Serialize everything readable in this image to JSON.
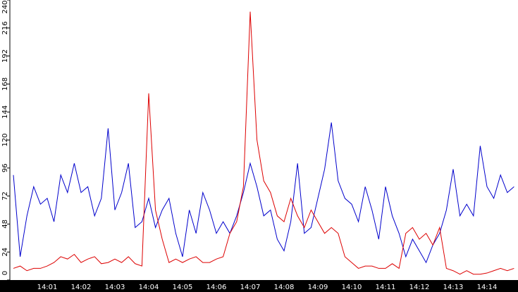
{
  "chart_data": {
    "type": "line",
    "categories": [
      null,
      null,
      null,
      null,
      null,
      "14:01",
      null,
      null,
      null,
      null,
      "14:02",
      null,
      null,
      null,
      null,
      "14:03",
      null,
      null,
      null,
      null,
      "14:04",
      null,
      null,
      null,
      null,
      "14:05",
      null,
      null,
      null,
      null,
      "14:06",
      null,
      null,
      null,
      null,
      "14:07",
      null,
      null,
      null,
      null,
      "14:08",
      null,
      null,
      null,
      null,
      "14:09",
      null,
      null,
      null,
      null,
      "14:10",
      null,
      null,
      null,
      null,
      "14:11",
      null,
      null,
      null,
      null,
      "14:12",
      null,
      null,
      null,
      null,
      "14:13",
      null,
      null,
      null,
      null,
      "14:14",
      null,
      null,
      null,
      null
    ],
    "series": [
      {
        "color": "#0000cc",
        "values": [
          90,
          20,
          55,
          80,
          65,
          70,
          50,
          90,
          75,
          100,
          75,
          80,
          55,
          70,
          130,
          60,
          75,
          100,
          45,
          50,
          70,
          45,
          60,
          70,
          40,
          20,
          60,
          40,
          75,
          60,
          40,
          50,
          40,
          55,
          75,
          100,
          80,
          55,
          60,
          35,
          25,
          50,
          100,
          40,
          45,
          70,
          95,
          135,
          85,
          70,
          65,
          50,
          80,
          60,
          35,
          80,
          55,
          40,
          20,
          35,
          25,
          15,
          30,
          40,
          60,
          95,
          55,
          65,
          55,
          115,
          80,
          70,
          90,
          75,
          80
        ]
      },
      {
        "color": "#dd0000",
        "values": [
          10,
          12,
          8,
          10,
          10,
          12,
          15,
          20,
          18,
          22,
          15,
          18,
          20,
          14,
          15,
          18,
          15,
          20,
          14,
          12,
          160,
          60,
          35,
          15,
          18,
          15,
          18,
          20,
          15,
          15,
          18,
          20,
          40,
          50,
          80,
          230,
          120,
          85,
          75,
          55,
          50,
          70,
          55,
          45,
          60,
          50,
          40,
          45,
          40,
          20,
          15,
          10,
          12,
          12,
          10,
          10,
          14,
          10,
          40,
          45,
          35,
          40,
          30,
          45,
          10,
          8,
          5,
          8,
          5,
          5,
          6,
          8,
          10,
          8,
          10
        ]
      }
    ],
    "ylim": [
      0,
      240
    ],
    "yticks": [
      0,
      24,
      48,
      72,
      96,
      120,
      144,
      168,
      192,
      216,
      240
    ]
  }
}
